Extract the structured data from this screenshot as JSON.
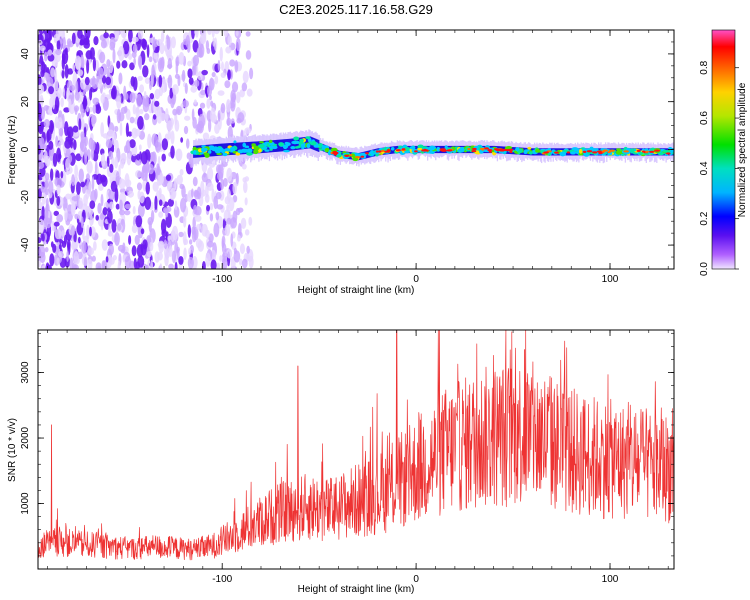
{
  "figure": {
    "title": "C2E3.2025.117.16.58.G29"
  },
  "chart_data": [
    {
      "type": "heatmap",
      "title": "C2E3.2025.117.16.58.G29",
      "xlabel": "Height of straight line (km)",
      "ylabel": "Frequency (Hz)",
      "xlim": [
        -195,
        133
      ],
      "ylim": [
        -50,
        50
      ],
      "x_ticks": [
        -100,
        0,
        100
      ],
      "x_tick_labels": [
        "-100",
        "0",
        "100"
      ],
      "y_ticks": [
        -40,
        -20,
        0,
        20,
        40
      ],
      "y_tick_labels": [
        "-40",
        "-20",
        "0",
        "20",
        "40"
      ],
      "colorbar": {
        "label": "Normalized spectral amplitude",
        "range": [
          0,
          0.95
        ],
        "ticks": [
          0.0,
          0.2,
          0.4,
          0.6,
          0.8
        ],
        "tick_labels": [
          "0.0",
          "0.2",
          "0.4",
          "0.6",
          "0.8"
        ],
        "colormap": "rainbow"
      },
      "signal_trace": {
        "x": [
          -115,
          -100,
          -80,
          -65,
          -55,
          -40,
          -30,
          -20,
          -10,
          0,
          20,
          40,
          60,
          80,
          100,
          120,
          133
        ],
        "y": [
          -1,
          0,
          1,
          2,
          3,
          -2,
          -3,
          -1,
          0,
          0,
          0,
          0,
          -1,
          -1,
          -1,
          -1,
          -1
        ]
      },
      "noise_region_x_range": [
        -195,
        -85
      ]
    },
    {
      "type": "line",
      "xlabel": "Height of straight line (km)",
      "ylabel": "SNR (10 * v/v)",
      "xlim": [
        -195,
        133
      ],
      "ylim": [
        0,
        3650
      ],
      "x_ticks": [
        -100,
        0,
        100
      ],
      "x_tick_labels": [
        "-100",
        "0",
        "100"
      ],
      "y_ticks": [
        1000,
        2000,
        3000
      ],
      "y_tick_labels": [
        "1000",
        "2000",
        "3000"
      ],
      "line_color": "#ee3333",
      "series": [
        {
          "x": [
            -195,
            -185,
            -175,
            -165,
            -155,
            -145,
            -135,
            -125,
            -115,
            -105,
            -95,
            -85,
            -75,
            -65,
            -55,
            -45,
            -35,
            -25,
            -15,
            -5,
            5,
            15,
            25,
            35,
            45,
            55,
            65,
            75,
            85,
            95,
            105,
            115,
            125,
            133
          ],
          "y": [
            350,
            420,
            380,
            360,
            330,
            310,
            340,
            320,
            300,
            350,
            500,
            650,
            800,
            900,
            950,
            900,
            1000,
            1100,
            1200,
            1400,
            1600,
            1800,
            1900,
            2000,
            2050,
            2100,
            2000,
            1850,
            1750,
            1700,
            1650,
            1600,
            1550,
            1550
          ]
        }
      ],
      "peaks": [
        {
          "x": -188,
          "y": 2200
        },
        {
          "x": -61,
          "y": 3100
        },
        {
          "x": -10,
          "y": 3650
        },
        {
          "x": 56,
          "y": 3350
        }
      ]
    }
  ]
}
